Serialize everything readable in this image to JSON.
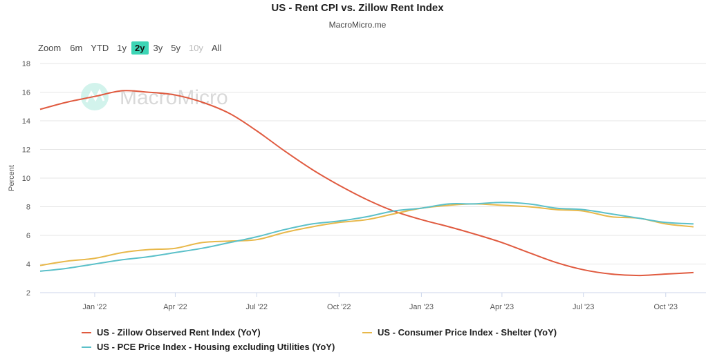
{
  "header": {
    "title": "US - Rent CPI vs. Zillow Rent Index",
    "subtitle": "MacroMicro.me"
  },
  "range_selector": {
    "label": "Zoom",
    "buttons": [
      {
        "label": "6m",
        "state": "normal"
      },
      {
        "label": "YTD",
        "state": "normal"
      },
      {
        "label": "1y",
        "state": "normal"
      },
      {
        "label": "2y",
        "state": "active"
      },
      {
        "label": "3y",
        "state": "normal"
      },
      {
        "label": "5y",
        "state": "normal"
      },
      {
        "label": "10y",
        "state": "disabled"
      },
      {
        "label": "All",
        "state": "normal"
      }
    ]
  },
  "watermark": {
    "text": "MacroMicro",
    "icon": "macromicro-logo-icon"
  },
  "chart_data": {
    "type": "line",
    "ylabel": "Percent",
    "xlabel": "",
    "ylim": [
      2,
      18
    ],
    "yticks": [
      2,
      4,
      6,
      8,
      10,
      12,
      14,
      16,
      18
    ],
    "xlim": [
      "2021-11-01",
      "2023-11-15"
    ],
    "xticks": [
      {
        "date": "2022-01-01",
        "label": "Jan '22"
      },
      {
        "date": "2022-04-01",
        "label": "Apr '22"
      },
      {
        "date": "2022-07-01",
        "label": "Jul '22"
      },
      {
        "date": "2022-10-01",
        "label": "Oct '22"
      },
      {
        "date": "2023-01-01",
        "label": "Jan '23"
      },
      {
        "date": "2023-04-01",
        "label": "Apr '23"
      },
      {
        "date": "2023-07-01",
        "label": "Jul '23"
      },
      {
        "date": "2023-10-01",
        "label": "Oct '23"
      }
    ],
    "grid": true,
    "legend_position": "bottom",
    "x": [
      "2021-11-01",
      "2021-12-01",
      "2022-01-01",
      "2022-02-01",
      "2022-03-01",
      "2022-04-01",
      "2022-05-01",
      "2022-06-01",
      "2022-07-01",
      "2022-08-01",
      "2022-09-01",
      "2022-10-01",
      "2022-11-01",
      "2022-12-01",
      "2023-01-01",
      "2023-02-01",
      "2023-03-01",
      "2023-04-01",
      "2023-05-01",
      "2023-06-01",
      "2023-07-01",
      "2023-08-01",
      "2023-09-01",
      "2023-10-01",
      "2023-11-01"
    ],
    "series": [
      {
        "name": "US - Zillow Observed Rent Index (YoY)",
        "color": "#e05a3f",
        "values": [
          14.8,
          15.3,
          15.7,
          16.1,
          16.0,
          15.8,
          15.3,
          14.5,
          13.3,
          11.9,
          10.6,
          9.5,
          8.5,
          7.7,
          7.1,
          6.6,
          6.1,
          5.5,
          4.8,
          4.1,
          3.6,
          3.3,
          3.2,
          3.3,
          3.4
        ]
      },
      {
        "name": "US - Consumer Price Index - Shelter (YoY)",
        "color": "#e8b84a",
        "values": [
          3.9,
          4.2,
          4.4,
          4.8,
          5.0,
          5.1,
          5.5,
          5.6,
          5.7,
          6.2,
          6.6,
          6.9,
          7.1,
          7.5,
          7.9,
          8.1,
          8.2,
          8.1,
          8.0,
          7.8,
          7.7,
          7.3,
          7.2,
          6.8,
          6.6
        ]
      },
      {
        "name": "US - PCE Price Index - Housing excluding Utilities (YoY)",
        "color": "#5bc0c9",
        "values": [
          3.5,
          3.7,
          4.0,
          4.3,
          4.5,
          4.8,
          5.1,
          5.5,
          5.9,
          6.4,
          6.8,
          7.0,
          7.3,
          7.7,
          7.9,
          8.2,
          8.2,
          8.3,
          8.2,
          7.9,
          7.8,
          7.5,
          7.2,
          6.9,
          6.8
        ]
      }
    ]
  }
}
